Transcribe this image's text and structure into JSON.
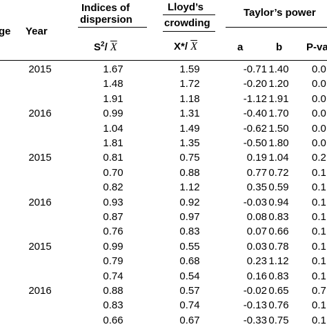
{
  "header": {
    "col_stage_partial": "ge",
    "col_year": "Year",
    "group_dispersion_line1": "Indices of",
    "group_dispersion_line2": "dispersion",
    "group_lloyd_line1": "Lloyd’s",
    "group_lloyd_line2": "crowding",
    "group_taylor": "Taylor’s power",
    "sub_dispersion_prefix": "S",
    "sub_dispersion_exp": "2",
    "sub_dispersion_slash": "/",
    "sub_dispersion_xbar": "X",
    "sub_lloyd_prefix": "X*",
    "sub_lloyd_slash": "/",
    "sub_lloyd_xbar": "X",
    "sub_a": "a",
    "sub_b": "b",
    "sub_pval_partial": "P-va"
  },
  "rows": [
    {
      "year": "2015",
      "disp": "1.67",
      "lloyd": "1.59",
      "a": "-0.71",
      "b": "1.40",
      "p": "0.0"
    },
    {
      "year": "",
      "disp": "1.48",
      "lloyd": "1.72",
      "a": "-0.20",
      "b": "1.20",
      "p": "0.0"
    },
    {
      "year": "",
      "disp": "1.91",
      "lloyd": "1.18",
      "a": "-1.12",
      "b": "1.91",
      "p": "0.0"
    },
    {
      "year": "2016",
      "disp": "0.99",
      "lloyd": "1.31",
      "a": "-0.40",
      "b": "1.70",
      "p": "0.0"
    },
    {
      "year": "",
      "disp": "1.04",
      "lloyd": "1.49",
      "a": "-0.62",
      "b": "1.50",
      "p": "0.0"
    },
    {
      "year": "",
      "disp": "1.81",
      "lloyd": "1.35",
      "a": "-0.50",
      "b": "1.80",
      "p": "0.0"
    },
    {
      "year": "2015",
      "disp": "0.81",
      "lloyd": "0.75",
      "a": "0.19",
      "b": "1.04",
      "p": "0.2"
    },
    {
      "year": "",
      "disp": "0.70",
      "lloyd": "0.88",
      "a": "0.77",
      "b": "0.72",
      "p": "0.1"
    },
    {
      "year": "",
      "disp": "0.82",
      "lloyd": "1.12",
      "a": "0.35",
      "b": "0.59",
      "p": "0.1"
    },
    {
      "year": "2016",
      "disp": "0.93",
      "lloyd": "0.92",
      "a": "-0.03",
      "b": "0.94",
      "p": "0.1"
    },
    {
      "year": "",
      "disp": "0.87",
      "lloyd": "0.97",
      "a": "0.08",
      "b": "0.83",
      "p": "0.1"
    },
    {
      "year": "",
      "disp": "0.76",
      "lloyd": "0.83",
      "a": "0.07",
      "b": "0.66",
      "p": "0.1"
    },
    {
      "year": "2015",
      "disp": "0.99",
      "lloyd": "0.55",
      "a": "0.03",
      "b": "0.78",
      "p": "0.1"
    },
    {
      "year": "",
      "disp": "0.79",
      "lloyd": "0.68",
      "a": "0.23",
      "b": "1.12",
      "p": "0.1"
    },
    {
      "year": "",
      "disp": "0.74",
      "lloyd": "0.54",
      "a": "0.16",
      "b": "0.83",
      "p": "0.1"
    },
    {
      "year": "2016",
      "disp": "0.88",
      "lloyd": "0.57",
      "a": "-0.02",
      "b": "0.65",
      "p": "0.7"
    },
    {
      "year": "",
      "disp": "0.83",
      "lloyd": "0.74",
      "a": "-0.13",
      "b": "0.76",
      "p": "0.1"
    },
    {
      "year": "",
      "disp": "0.66",
      "lloyd": "0.67",
      "a": "-0.33",
      "b": "0.75",
      "p": "0.1"
    }
  ]
}
